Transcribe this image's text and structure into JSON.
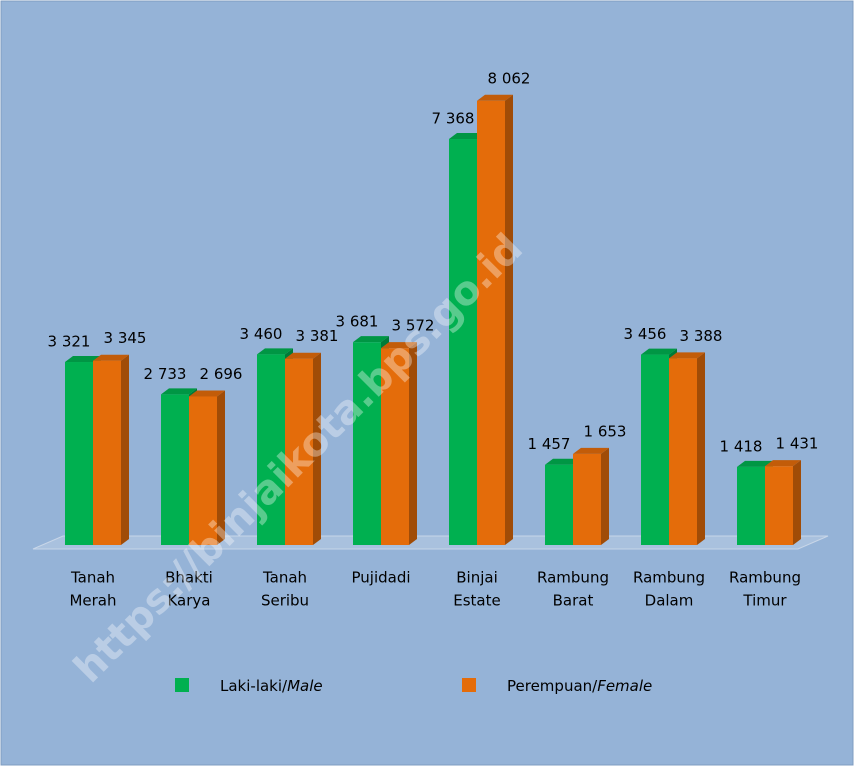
{
  "chart_data": {
    "type": "bar3d",
    "categories": [
      [
        "Tanah",
        "Merah"
      ],
      [
        "Bhakti",
        "Karya"
      ],
      [
        "Tanah",
        "Seribu"
      ],
      [
        "Pujidadi"
      ],
      [
        "Binjai",
        "Estate"
      ],
      [
        "Rambung",
        "Barat"
      ],
      [
        "Rambung",
        "Dalam"
      ],
      [
        "Rambung",
        "Timur"
      ]
    ],
    "series": [
      {
        "name": "Laki-laki/Male",
        "color": "#00b050",
        "values": [
          3321,
          2733,
          3460,
          3681,
          7368,
          1457,
          3456,
          1418
        ],
        "value_labels": [
          "3 321",
          "2 733",
          "3 460",
          "3 681",
          "7 368",
          "1 457",
          "3 456",
          "1 418"
        ]
      },
      {
        "name": "Perempuan/Female",
        "color": "#e46c0a",
        "values": [
          3345,
          2696,
          3381,
          3572,
          8062,
          1653,
          3388,
          1431
        ],
        "value_labels": [
          "3 345",
          "2 696",
          "3 381",
          "3 572",
          "8 062",
          "1 653",
          "3 388",
          "1 431"
        ]
      }
    ],
    "watermark": "https://binjaikota.bps.go.id"
  }
}
